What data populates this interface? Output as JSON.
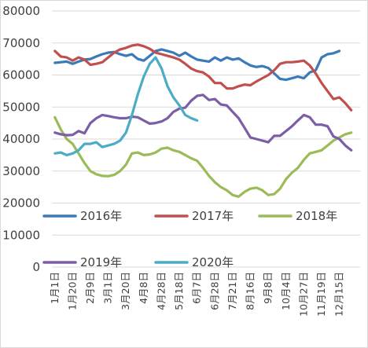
{
  "chart_data": {
    "type": "line",
    "title": "",
    "xlabel": "",
    "ylabel": "",
    "ylim": [
      0,
      80000
    ],
    "yticks": [
      0,
      10000,
      20000,
      30000,
      40000,
      50000,
      60000,
      70000,
      80000
    ],
    "grid": true,
    "legend_position": "inside-lower",
    "x_count": 52,
    "x_tick_labels": [
      "1月1日",
      "1月20日",
      "2月9日",
      "3月1日",
      "3月20日",
      "4月8日",
      "4月28日",
      "5月18日",
      "6月7日",
      "6月28日",
      "7月21日",
      "8月16日",
      "9月8日",
      "10月4日",
      "10月27日",
      "11月19日",
      "12月15日"
    ],
    "series": [
      {
        "name": "2016年",
        "color": "#3a7ab8",
        "values": [
          63800,
          64000,
          64200,
          63500,
          64200,
          64800,
          65000,
          65800,
          66500,
          67000,
          67200,
          66500,
          66000,
          66500,
          65000,
          64500,
          66000,
          67500,
          68000,
          67500,
          67000,
          66000,
          67000,
          65800,
          64800,
          64500,
          64200,
          65500,
          64500,
          65500,
          64800,
          65200,
          64000,
          63000,
          62500,
          62800,
          62200,
          60500,
          58800,
          58500,
          59000,
          59500,
          59000,
          60800,
          61500,
          65500,
          66500,
          66800,
          67500
        ]
      },
      {
        "name": "2017年",
        "color": "#c0504d",
        "values": [
          67500,
          65800,
          65500,
          64500,
          65500,
          64800,
          63200,
          63500,
          64000,
          65500,
          67000,
          68000,
          68500,
          69200,
          69500,
          69000,
          68200,
          67000,
          66500,
          66000,
          65500,
          64800,
          63500,
          62000,
          61200,
          60800,
          59500,
          57500,
          57500,
          55800,
          55800,
          56500,
          57000,
          56800,
          58000,
          59000,
          60000,
          61500,
          63500,
          64000,
          64000,
          64200,
          64500,
          63000,
          60500,
          57500,
          55000,
          52500,
          53000,
          51200,
          49000
        ]
      },
      {
        "name": "2018年",
        "color": "#9bbb59",
        "values": [
          46800,
          43000,
          40000,
          38500,
          35500,
          32500,
          30000,
          29000,
          28500,
          28400,
          28800,
          30000,
          32000,
          35500,
          35800,
          35000,
          35200,
          35800,
          37000,
          37300,
          36500,
          36000,
          35000,
          34000,
          33200,
          31000,
          28500,
          26500,
          25000,
          24000,
          22500,
          22000,
          23500,
          24500,
          24800,
          24000,
          22500,
          22800,
          24500,
          27500,
          29500,
          31000,
          33500,
          35500,
          36000,
          36500,
          38000,
          39500,
          40500,
          41500,
          42000
        ]
      },
      {
        "name": "2019年",
        "color": "#7b5ea7",
        "values": [
          42000,
          41500,
          41200,
          41300,
          42500,
          41800,
          45000,
          46500,
          47500,
          47200,
          46800,
          46500,
          46500,
          47000,
          46800,
          45800,
          44800,
          45000,
          45500,
          46500,
          48500,
          49500,
          49800,
          52000,
          53500,
          53800,
          52200,
          52500,
          50800,
          50500,
          48500,
          46500,
          43500,
          40500,
          40000,
          39500,
          39000,
          41000,
          41000,
          42500,
          44000,
          45800,
          47500,
          46800,
          44500,
          44500,
          44000,
          40800,
          40000,
          38000,
          36500
        ]
      },
      {
        "name": "2020年",
        "color": "#4bacc6",
        "values": [
          35500,
          35800,
          35000,
          35500,
          36500,
          38500,
          38500,
          39000,
          37500,
          38000,
          38500,
          39500,
          42000,
          47500,
          54000,
          59500,
          63500,
          65500,
          62000,
          56500,
          53000,
          50500,
          47500,
          46500,
          45800
        ]
      }
    ]
  }
}
